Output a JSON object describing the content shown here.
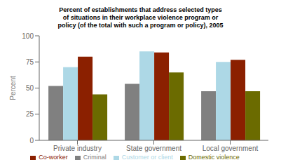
{
  "chart_data": {
    "type": "bar",
    "title": "Percent of establishments that address selected types\nof situations in their workplace violence program or\npolicy (of the total with such a program or policy), 2005",
    "categories": [
      "Private industry",
      "State government",
      "Local government"
    ],
    "series": [
      {
        "name": "Criminal",
        "color": "#808080",
        "values": [
          52,
          54,
          47
        ]
      },
      {
        "name": "Customer or client",
        "color": "#add8e6",
        "values": [
          70,
          85,
          75
        ]
      },
      {
        "name": "Co-worker",
        "color": "#8b2000",
        "values": [
          80,
          84,
          77
        ]
      },
      {
        "name": "Domestic violence",
        "color": "#6b6b00",
        "values": [
          44,
          65,
          47
        ]
      }
    ],
    "ylabel": "Percent",
    "ylim": [
      0,
      100
    ],
    "yticks": [
      0,
      25,
      50,
      75,
      100
    ],
    "grid": false,
    "legend": "bottom"
  }
}
